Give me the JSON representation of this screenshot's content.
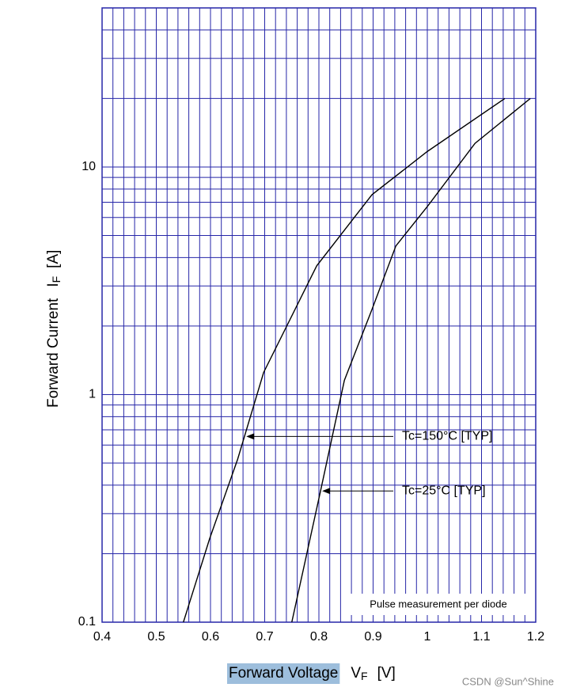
{
  "chart_data": {
    "type": "line",
    "y_label": {
      "text": "Forward Current",
      "symbol": "I",
      "subscript": "F",
      "unit": "[A]"
    },
    "x_label": {
      "text": "Forward Voltage",
      "symbol": "V",
      "subscript": "F",
      "unit": "[V]"
    },
    "xlim": [
      0.4,
      1.2
    ],
    "xticks": [
      0.4,
      0.5,
      0.6,
      0.7,
      0.8,
      0.9,
      1,
      1.1,
      1.2
    ],
    "ylim": [
      0.1,
      50
    ],
    "yticks": [
      0.1,
      1,
      10
    ],
    "log_y": true,
    "grid": true,
    "xgrid": [
      0.42,
      0.44,
      0.46,
      0.48,
      0.52,
      0.54,
      0.56,
      0.58,
      0.62,
      0.64,
      0.66,
      0.68,
      0.72,
      0.74,
      0.76,
      0.78,
      0.82,
      0.84,
      0.86,
      0.88,
      0.92,
      0.94,
      0.96,
      0.98,
      1.02,
      1.04,
      1.06,
      1.08,
      1.12,
      1.14,
      1.16,
      1.18
    ],
    "ygrid": [
      0.2,
      0.3,
      0.4,
      0.5,
      0.6,
      0.7,
      0.8,
      0.9,
      2,
      3,
      4,
      5,
      6,
      7,
      8,
      9,
      20,
      30,
      40,
      50
    ],
    "series": [
      {
        "color": "#000000",
        "x": [
          0.55,
          0.5985,
          0.65,
          0.698,
          0.796,
          0.898,
          1.0,
          1.143
        ],
        "values": [
          0.1,
          0.233,
          0.519,
          1.25,
          3.68,
          7.56,
          11.7,
          20
        ]
      },
      {
        "color": "#000000",
        "x": [
          0.75,
          0.803,
          0.847,
          0.898,
          0.942,
          1.0,
          1.088,
          1.19
        ],
        "values": [
          0.1,
          0.377,
          1.155,
          2.37,
          4.5,
          6.7,
          12.7,
          20
        ]
      }
    ],
    "annotations": [
      {
        "text": "Tc=150°C [TYP]",
        "x": 0.666,
        "y": 0.655
      },
      {
        "text": "Tc=25°C [TYP]",
        "x": 0.806,
        "y": 0.377
      }
    ],
    "note": "Pulse measurement per diode",
    "watermark": "CSDN @Sun^Shine"
  }
}
